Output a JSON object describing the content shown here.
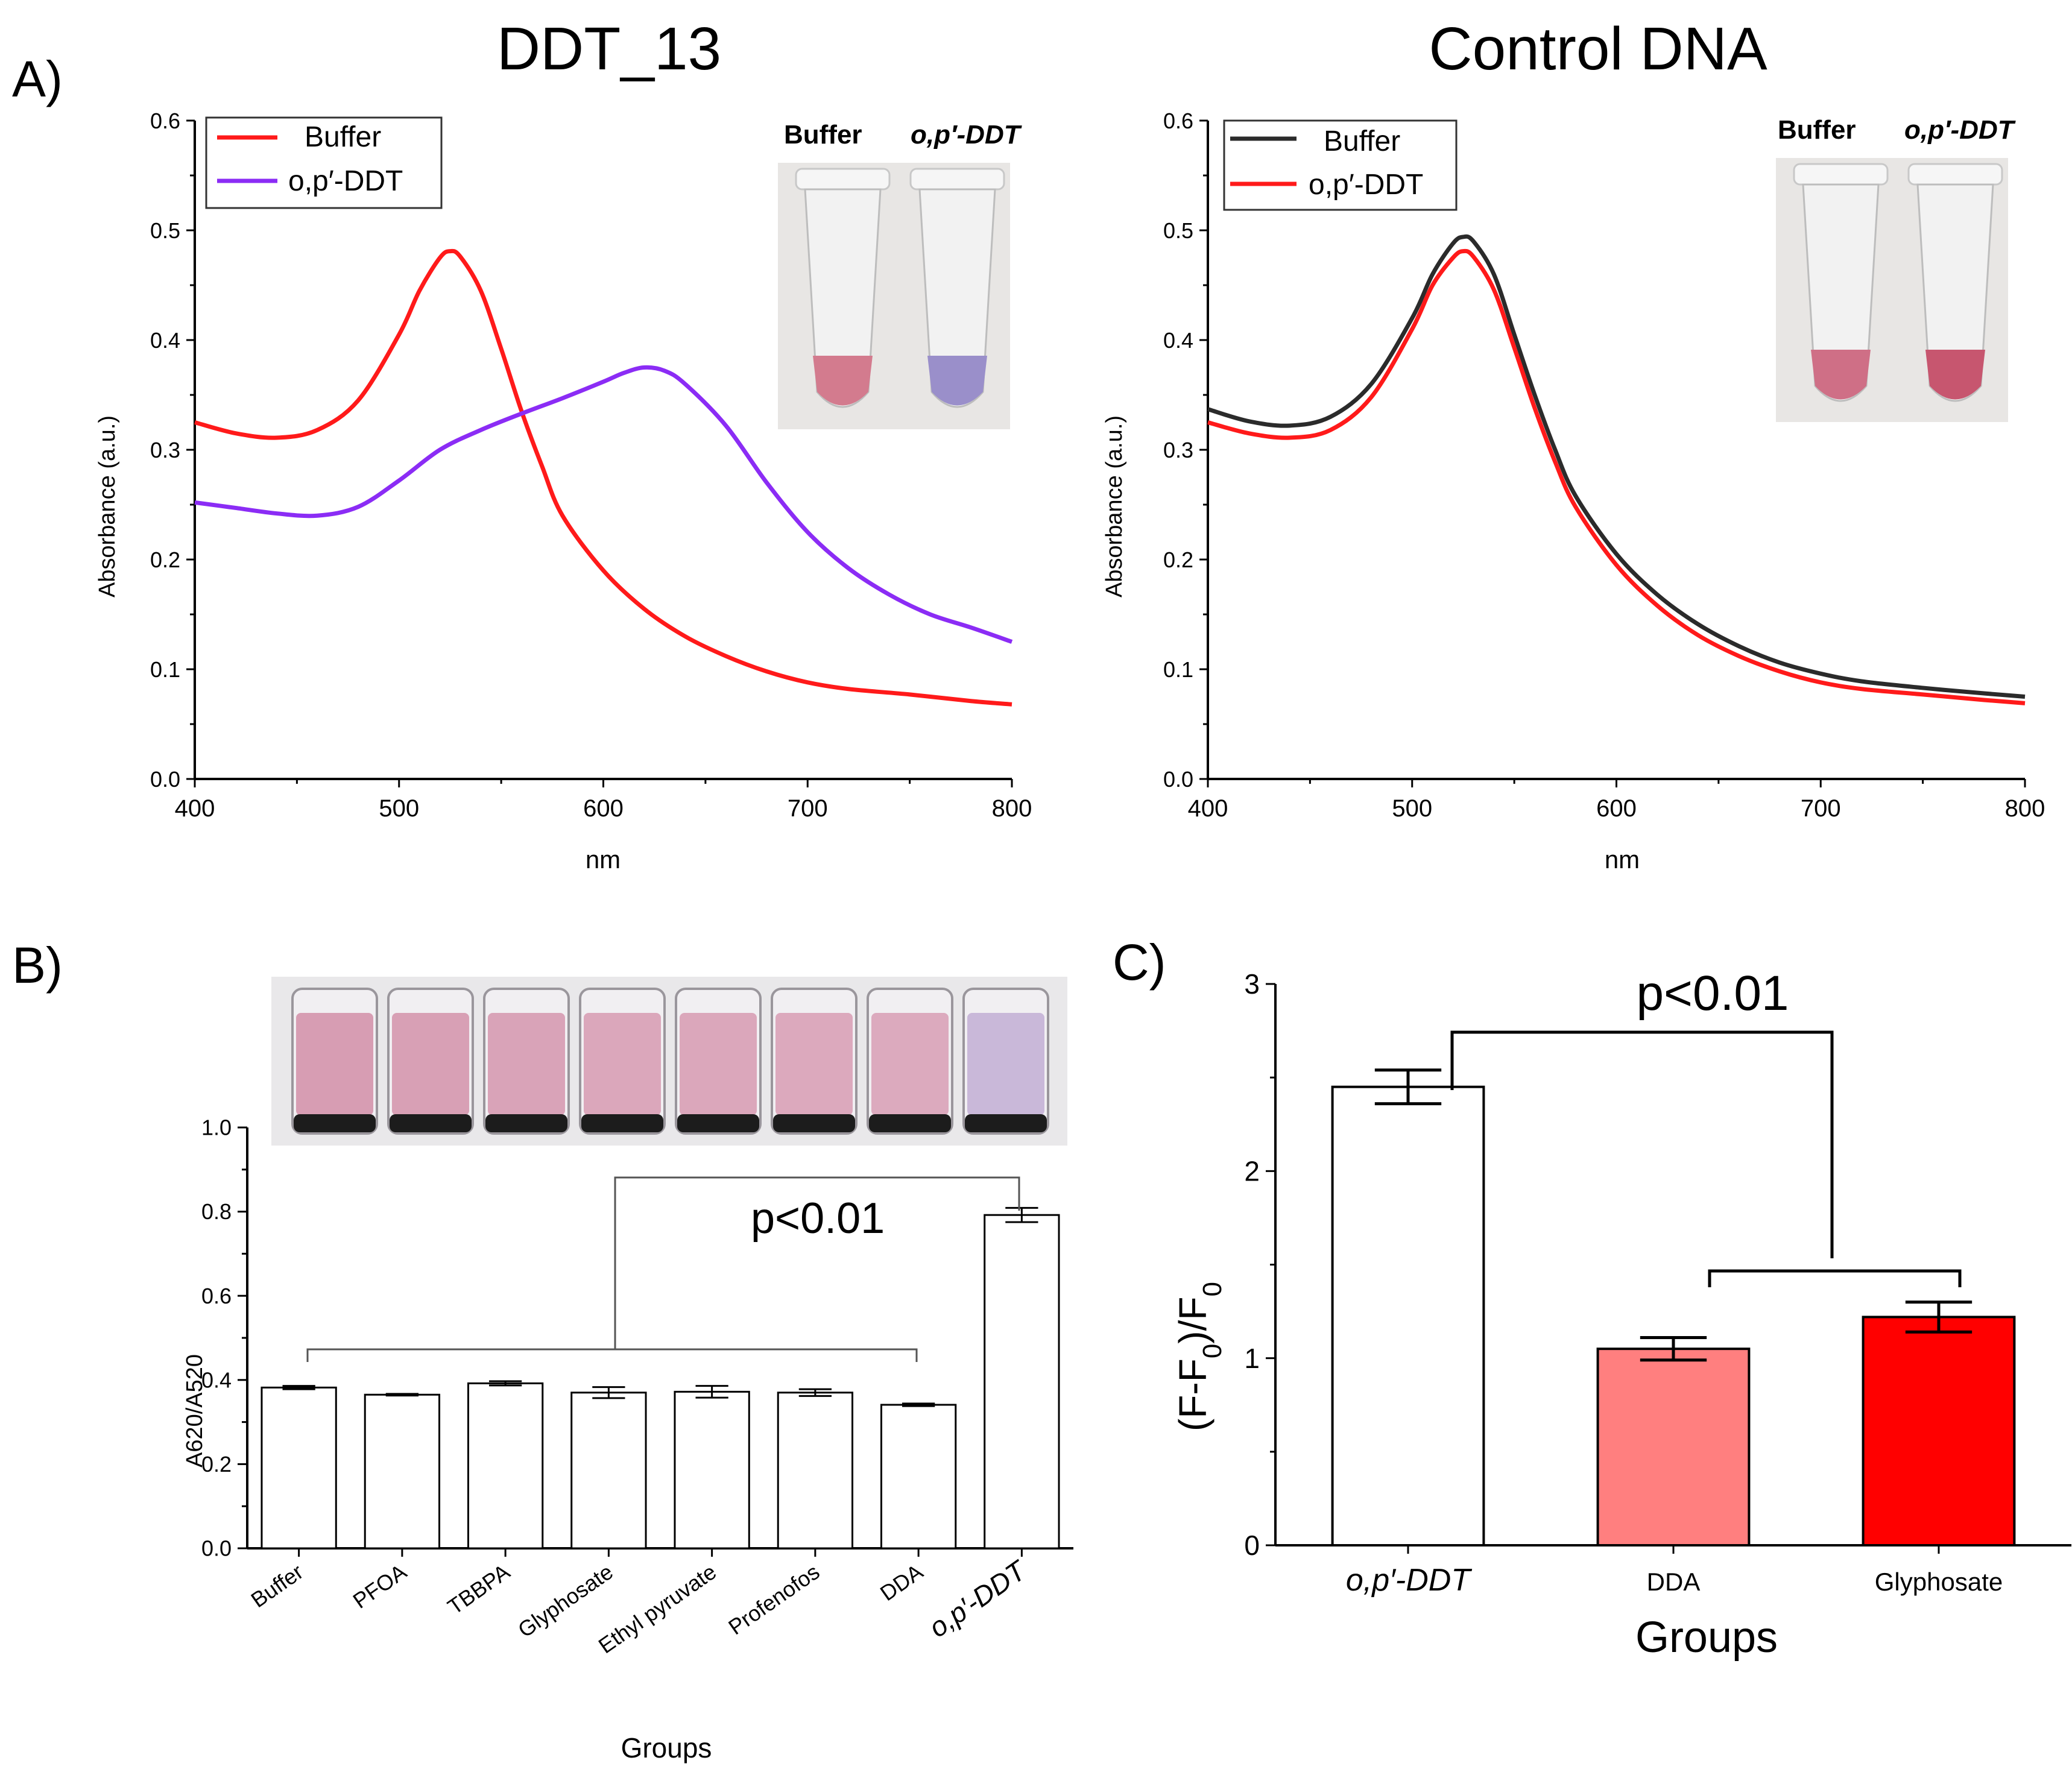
{
  "figure": {
    "panel_a_label": "A)",
    "panel_b_label": "B)",
    "panel_c_label": "C)"
  },
  "colors": {
    "red": "#ff1a1a",
    "purple": "#8b2cf5",
    "black": "#2b2b2b",
    "dda_bar": "#ff7f7f",
    "glyphosate_bar": "#ff0000",
    "white": "#ffffff"
  },
  "inset_a1": {
    "label_buffer": "Buffer",
    "label_ddt": "o,p′-DDT"
  },
  "inset_a2": {
    "label_buffer": "Buffer",
    "label_ddt": "o,p′-DDT"
  },
  "chart_data": [
    {
      "id": "a1",
      "type": "line",
      "title": "DDT_13",
      "xlabel": "nm",
      "ylabel": "Absorbance (a.u.)",
      "xlim": [
        400,
        800
      ],
      "ylim": [
        0.0,
        0.6
      ],
      "xticks": [
        "400",
        "500",
        "600",
        "700",
        "800"
      ],
      "yticks": [
        "0.0",
        "0.1",
        "0.2",
        "0.3",
        "0.4",
        "0.5",
        "0.6"
      ],
      "legend_position": "top-left",
      "series": [
        {
          "name": "Buffer",
          "color": "#ff1a1a",
          "x": [
            400,
            420,
            440,
            460,
            480,
            500,
            510,
            520,
            525,
            530,
            540,
            550,
            560,
            570,
            580,
            600,
            620,
            640,
            660,
            680,
            700,
            720,
            750,
            780,
            800
          ],
          "y": [
            0.325,
            0.315,
            0.311,
            0.318,
            0.345,
            0.405,
            0.445,
            0.475,
            0.481,
            0.476,
            0.445,
            0.392,
            0.335,
            0.285,
            0.24,
            0.19,
            0.155,
            0.13,
            0.112,
            0.098,
            0.088,
            0.082,
            0.077,
            0.071,
            0.068
          ]
        },
        {
          "name": "o,p′-DDT",
          "color": "#8b2cf5",
          "x": [
            400,
            420,
            440,
            460,
            480,
            500,
            520,
            540,
            560,
            580,
            600,
            610,
            620,
            630,
            640,
            660,
            680,
            700,
            720,
            740,
            760,
            780,
            800
          ],
          "y": [
            0.252,
            0.247,
            0.242,
            0.24,
            0.248,
            0.272,
            0.3,
            0.318,
            0.333,
            0.347,
            0.362,
            0.37,
            0.375,
            0.372,
            0.36,
            0.322,
            0.27,
            0.225,
            0.192,
            0.168,
            0.15,
            0.138,
            0.125
          ]
        }
      ]
    },
    {
      "id": "a2",
      "type": "line",
      "title": "Control DNA",
      "xlabel": "nm",
      "ylabel": "Absorbance (a.u.)",
      "xlim": [
        400,
        800
      ],
      "ylim": [
        0.0,
        0.6
      ],
      "xticks": [
        "400",
        "500",
        "600",
        "700",
        "800"
      ],
      "yticks": [
        "0.0",
        "0.1",
        "0.2",
        "0.3",
        "0.4",
        "0.5",
        "0.6"
      ],
      "legend_position": "top-left",
      "series": [
        {
          "name": "Buffer",
          "color": "#2b2b2b",
          "x": [
            400,
            420,
            440,
            460,
            480,
            500,
            510,
            520,
            525,
            530,
            540,
            550,
            560,
            570,
            580,
            600,
            620,
            640,
            660,
            680,
            700,
            720,
            750,
            780,
            800
          ],
          "y": [
            0.337,
            0.326,
            0.322,
            0.33,
            0.36,
            0.42,
            0.46,
            0.488,
            0.494,
            0.49,
            0.46,
            0.405,
            0.35,
            0.3,
            0.258,
            0.205,
            0.168,
            0.141,
            0.121,
            0.106,
            0.096,
            0.089,
            0.083,
            0.078,
            0.075
          ]
        },
        {
          "name": "o,p′-DDT",
          "color": "#ff1a1a",
          "x": [
            400,
            420,
            440,
            460,
            480,
            500,
            510,
            520,
            525,
            530,
            540,
            550,
            560,
            570,
            580,
            600,
            620,
            640,
            660,
            680,
            700,
            720,
            750,
            780,
            800
          ],
          "y": [
            0.325,
            0.315,
            0.311,
            0.318,
            0.348,
            0.41,
            0.45,
            0.475,
            0.481,
            0.476,
            0.446,
            0.393,
            0.338,
            0.289,
            0.248,
            0.195,
            0.158,
            0.131,
            0.112,
            0.098,
            0.088,
            0.082,
            0.077,
            0.072,
            0.069
          ]
        }
      ]
    },
    {
      "id": "b",
      "type": "bar",
      "xlabel": "Groups",
      "ylabel": "A620/A520",
      "ylim": [
        0.0,
        1.0
      ],
      "yticks": [
        "0.0",
        "0.2",
        "0.4",
        "0.6",
        "0.8",
        "1.0"
      ],
      "categories": [
        "Buffer",
        "PFOA",
        "TBBPA",
        "Glyphosate",
        "Ethyl pyruvate",
        "Profenofos",
        "DDA",
        "o,p′-DDT"
      ],
      "values": [
        0.382,
        0.365,
        0.392,
        0.37,
        0.372,
        0.37,
        0.341,
        0.792
      ],
      "errors": [
        0.004,
        0.002,
        0.005,
        0.013,
        0.014,
        0.008,
        0.003,
        0.017
      ],
      "significance": "p<0.01"
    },
    {
      "id": "c",
      "type": "bar",
      "xlabel": "Groups",
      "ylabel": "(F-F₀)/F₀",
      "ylim": [
        0,
        3
      ],
      "yticks": [
        "0",
        "1",
        "2",
        "3"
      ],
      "categories": [
        "o,p′-DDT",
        "DDA",
        "Glyphosate"
      ],
      "values": [
        2.45,
        1.05,
        1.22
      ],
      "errors": [
        0.09,
        0.06,
        0.08
      ],
      "bar_colors": [
        "#ffffff",
        "#ff7f7f",
        "#ff0000"
      ],
      "significance": "p<0.01"
    }
  ]
}
